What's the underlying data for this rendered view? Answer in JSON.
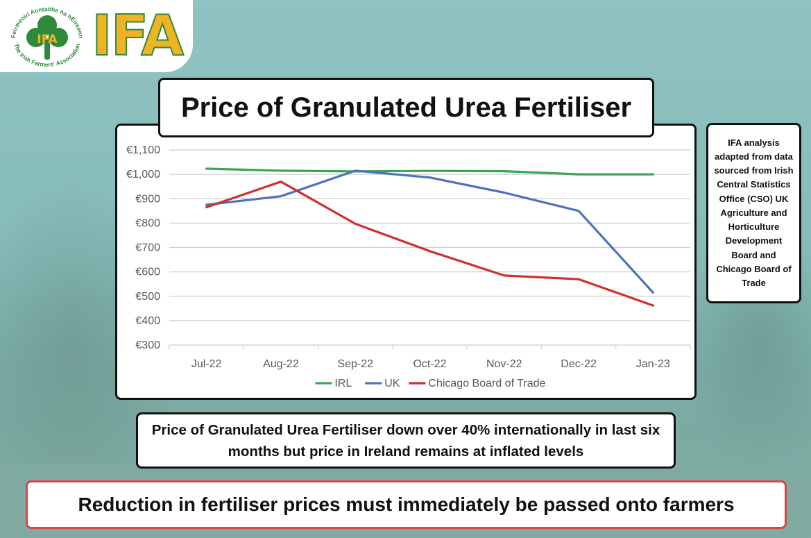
{
  "logo": {
    "wordmark": "IFA",
    "seal_top_text": "Feirmeoirí Aontaithe na hÉireann",
    "seal_bottom_text": "The Irish Farmers' Association",
    "seal_letters": "IFA"
  },
  "title": "Price of Granulated Urea Fertiliser",
  "source_note": "IFA analysis adapted from data sourced from Irish Central Statistics Office (CSO) UK Agriculture and Horticulture Development Board and Chicago Board of Trade",
  "summary": "Price of Granulated Urea Fertiliser down over 40% internationally in last six months but price in Ireland remains at inflated levels",
  "call_to_action": "Reduction in fertiliser prices must immediately be passed onto farmers",
  "chart_data": {
    "type": "line",
    "title": "",
    "xlabel": "",
    "ylabel": "",
    "categories": [
      "Jul-22",
      "Aug-22",
      "Sep-22",
      "Oct-22",
      "Nov-22",
      "Dec-22",
      "Jan-23"
    ],
    "ylim": [
      300,
      1100
    ],
    "yticks": [
      300,
      400,
      500,
      600,
      700,
      800,
      900,
      1000,
      1100
    ],
    "ytick_labels": [
      "€300",
      "€400",
      "€500",
      "€600",
      "€700",
      "€800",
      "€900",
      "€1,000",
      "€1,100"
    ],
    "grid": true,
    "legend_position": "bottom",
    "series": [
      {
        "name": "IRL",
        "color": "#3aa655",
        "values": [
          1023,
          1015,
          1012,
          1014,
          1013,
          1000,
          1000
        ]
      },
      {
        "name": "UK",
        "color": "#4d72be",
        "values": [
          875,
          910,
          1015,
          987,
          925,
          850,
          515
        ]
      },
      {
        "name": "Chicago Board of Trade",
        "color": "#d12e2e",
        "values": [
          865,
          970,
          797,
          685,
          585,
          570,
          462
        ]
      }
    ]
  }
}
